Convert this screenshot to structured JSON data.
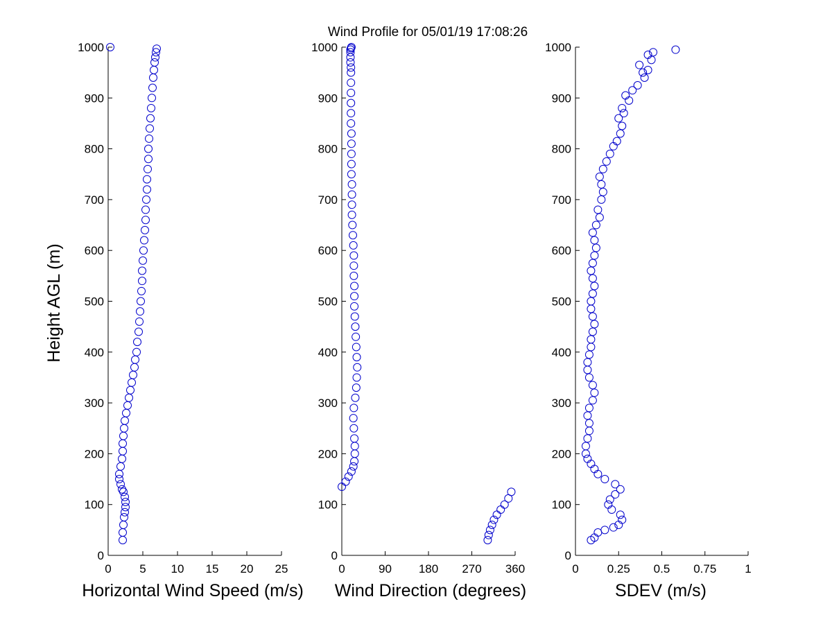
{
  "title": "Wind Profile for  05/01/19 17:08:26",
  "colors": {
    "marker": "#0000cc",
    "axis": "#000000",
    "background": "#ffffff"
  },
  "chart_data": [
    {
      "type": "scatter",
      "xlabel": "Horizontal Wind Speed (m/s)",
      "ylabel": "Height AGL (m)",
      "xlim": [
        0,
        25
      ],
      "ylim": [
        0,
        1000
      ],
      "xticks": [
        "0",
        "5",
        "10",
        "15",
        "20",
        "25"
      ],
      "yticks": [
        "0",
        "100",
        "200",
        "300",
        "400",
        "500",
        "600",
        "700",
        "800",
        "900",
        "1000"
      ],
      "grid": false,
      "marker": "open-circle",
      "x": [
        2.1,
        2.1,
        2.2,
        2.3,
        2.4,
        2.5,
        2.5,
        2.4,
        2.2,
        2.0,
        1.8,
        1.6,
        1.6,
        1.8,
        2.0,
        2.1,
        2.1,
        2.2,
        2.3,
        2.4,
        2.6,
        2.8,
        3.0,
        3.2,
        3.4,
        3.6,
        3.8,
        3.9,
        4.1,
        4.2,
        4.4,
        4.5,
        4.6,
        4.7,
        4.8,
        4.9,
        4.9,
        5.0,
        5.1,
        5.2,
        5.3,
        5.4,
        5.4,
        5.5,
        5.6,
        5.6,
        5.7,
        5.8,
        5.8,
        5.9,
        6.0,
        6.1,
        6.2,
        6.3,
        6.4,
        6.5,
        6.6,
        6.7,
        6.8,
        6.9,
        7.0,
        0.3
      ],
      "y": [
        30,
        45,
        60,
        75,
        85,
        95,
        105,
        115,
        125,
        130,
        140,
        150,
        160,
        175,
        190,
        205,
        220,
        235,
        250,
        265,
        280,
        295,
        310,
        325,
        340,
        355,
        370,
        385,
        400,
        420,
        440,
        460,
        480,
        500,
        520,
        540,
        560,
        580,
        600,
        620,
        640,
        660,
        680,
        700,
        720,
        740,
        760,
        780,
        800,
        820,
        840,
        860,
        880,
        900,
        920,
        940,
        955,
        970,
        980,
        990,
        997,
        1000
      ]
    },
    {
      "type": "scatter",
      "xlabel": "Wind Direction (degrees)",
      "ylabel": "",
      "xlim": [
        0,
        360
      ],
      "ylim": [
        0,
        1000
      ],
      "xticks": [
        "0",
        "90",
        "180",
        "270",
        "360"
      ],
      "yticks": [
        "0",
        "100",
        "200",
        "300",
        "400",
        "500",
        "600",
        "700",
        "800",
        "900",
        "1000"
      ],
      "grid": false,
      "marker": "open-circle",
      "x": [
        303,
        305,
        308,
        312,
        316,
        322,
        330,
        338,
        346,
        352,
        0,
        8,
        14,
        20,
        24,
        26,
        27,
        27,
        26,
        25,
        24,
        25,
        28,
        30,
        31,
        32,
        31,
        30,
        29,
        28,
        27,
        26,
        26,
        26,
        25,
        25,
        25,
        24,
        23,
        22,
        21,
        21,
        21,
        21,
        20,
        20,
        20,
        20,
        20,
        19,
        19,
        19,
        19,
        19,
        19,
        19,
        18,
        18,
        18,
        18,
        19,
        20
      ],
      "y": [
        30,
        40,
        50,
        60,
        70,
        80,
        90,
        100,
        112,
        125,
        135,
        145,
        155,
        165,
        175,
        185,
        200,
        215,
        230,
        250,
        270,
        290,
        310,
        330,
        350,
        370,
        390,
        410,
        430,
        450,
        470,
        490,
        510,
        530,
        550,
        570,
        590,
        610,
        630,
        650,
        670,
        690,
        710,
        730,
        750,
        770,
        790,
        810,
        830,
        850,
        870,
        890,
        910,
        930,
        950,
        960,
        970,
        980,
        990,
        995,
        998,
        1000
      ]
    },
    {
      "type": "scatter",
      "xlabel": "SDEV  (m/s)",
      "ylabel": "",
      "xlim": [
        0,
        1
      ],
      "ylim": [
        0,
        1000
      ],
      "xticks": [
        "0",
        "0.25",
        "0.5",
        "0.75",
        "1"
      ],
      "yticks": [
        "0",
        "100",
        "200",
        "300",
        "400",
        "500",
        "600",
        "700",
        "800",
        "900",
        "1000"
      ],
      "grid": false,
      "marker": "open-circle",
      "x": [
        0.09,
        0.11,
        0.13,
        0.17,
        0.22,
        0.25,
        0.27,
        0.26,
        0.21,
        0.19,
        0.2,
        0.23,
        0.26,
        0.23,
        0.17,
        0.13,
        0.11,
        0.09,
        0.07,
        0.06,
        0.06,
        0.07,
        0.08,
        0.08,
        0.07,
        0.08,
        0.1,
        0.11,
        0.1,
        0.08,
        0.07,
        0.07,
        0.08,
        0.09,
        0.09,
        0.1,
        0.11,
        0.1,
        0.09,
        0.09,
        0.1,
        0.11,
        0.1,
        0.09,
        0.1,
        0.11,
        0.12,
        0.11,
        0.1,
        0.12,
        0.14,
        0.13,
        0.15,
        0.16,
        0.15,
        0.14,
        0.16,
        0.18,
        0.2,
        0.22,
        0.24,
        0.26,
        0.27,
        0.25,
        0.28,
        0.27,
        0.31,
        0.29,
        0.33,
        0.36,
        0.4,
        0.42,
        0.39,
        0.37,
        0.44,
        0.42,
        0.45,
        0.58
      ],
      "y": [
        30,
        35,
        45,
        50,
        55,
        60,
        70,
        80,
        90,
        100,
        110,
        120,
        130,
        140,
        150,
        160,
        170,
        180,
        190,
        200,
        215,
        230,
        245,
        260,
        275,
        290,
        305,
        320,
        335,
        350,
        365,
        380,
        395,
        410,
        425,
        440,
        455,
        470,
        485,
        500,
        515,
        530,
        545,
        560,
        575,
        590,
        605,
        620,
        635,
        650,
        665,
        680,
        700,
        715,
        730,
        745,
        760,
        775,
        790,
        805,
        815,
        830,
        845,
        860,
        870,
        880,
        895,
        905,
        915,
        925,
        940,
        955,
        950,
        965,
        975,
        985,
        990,
        995
      ]
    }
  ]
}
